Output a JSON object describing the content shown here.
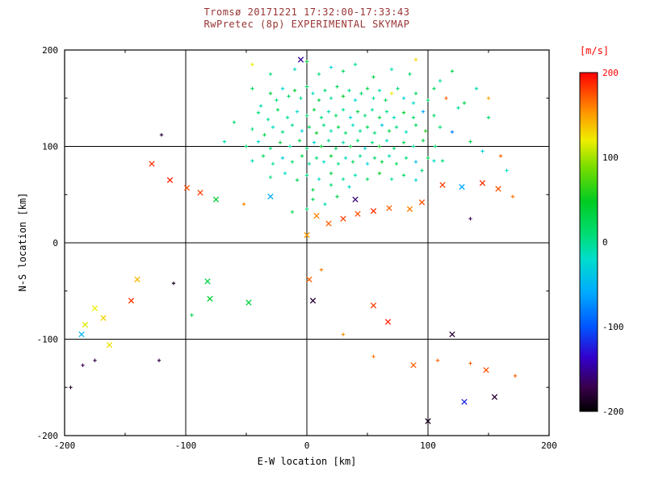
{
  "window": {
    "background": "#ffffff"
  },
  "chart_data": {
    "type": "scatter",
    "title": "Tromsø 20171221 17:32:00-17:33:43",
    "subtitle": "RwPretec (8p) EXPERIMENTAL SKYMAP",
    "title_color": "#993333",
    "xlabel": "E-W location [km]",
    "ylabel": "N-S location [km]",
    "xlim": [
      -200,
      200
    ],
    "ylim": [
      -200,
      200
    ],
    "xticks": [
      -200,
      -100,
      0,
      100,
      200
    ],
    "yticks": [
      -200,
      -100,
      0,
      100,
      200
    ],
    "grid_lines": [
      -100,
      0,
      100
    ],
    "grid": true,
    "legend_position": "none",
    "colorbar": {
      "label": "[m/s]",
      "label_color": "#ff0000",
      "min": -200,
      "max": 200,
      "ticks": [
        200,
        100,
        0,
        -100,
        -200
      ],
      "top_tick_color": "#ff0000",
      "tick_color": "#000000",
      "colormap_stops": [
        [
          0.0,
          "#000000"
        ],
        [
          0.07,
          "#38004a"
        ],
        [
          0.16,
          "#3300cc"
        ],
        [
          0.25,
          "#0055ff"
        ],
        [
          0.35,
          "#00aaff"
        ],
        [
          0.45,
          "#00ddcc"
        ],
        [
          0.52,
          "#00dd77"
        ],
        [
          0.62,
          "#00cc22"
        ],
        [
          0.72,
          "#77dd00"
        ],
        [
          0.8,
          "#eeee00"
        ],
        [
          0.88,
          "#ff9900"
        ],
        [
          1.0,
          "#ff0000"
        ]
      ]
    },
    "points_format": [
      "x_km",
      "y_km",
      "velocity_ms",
      "marker(optional: 'x'=cross, default=plus-dot)"
    ],
    "points": [
      [
        -45,
        160,
        20
      ],
      [
        -38,
        142,
        -10
      ],
      [
        -30,
        155,
        35
      ],
      [
        -25,
        148,
        5
      ],
      [
        -20,
        160,
        -25
      ],
      [
        -15,
        152,
        15
      ],
      [
        -10,
        158,
        40
      ],
      [
        -5,
        150,
        0
      ],
      [
        0,
        162,
        20
      ],
      [
        5,
        155,
        -15
      ],
      [
        10,
        148,
        30
      ],
      [
        15,
        158,
        10
      ],
      [
        20,
        150,
        -5
      ],
      [
        25,
        162,
        25
      ],
      [
        30,
        152,
        45
      ],
      [
        35,
        158,
        5
      ],
      [
        40,
        148,
        -20
      ],
      [
        45,
        155,
        15
      ],
      [
        50,
        160,
        30
      ],
      [
        55,
        150,
        0
      ],
      [
        60,
        158,
        -10
      ],
      [
        65,
        148,
        20
      ],
      [
        70,
        155,
        120
      ],
      [
        75,
        160,
        10
      ],
      [
        80,
        150,
        -30
      ],
      [
        90,
        155,
        25
      ],
      [
        100,
        148,
        15
      ],
      [
        -40,
        135,
        10
      ],
      [
        -32,
        128,
        -5
      ],
      [
        -24,
        138,
        25
      ],
      [
        -16,
        130,
        0
      ],
      [
        -8,
        136,
        -20
      ],
      [
        0,
        132,
        15
      ],
      [
        6,
        138,
        35
      ],
      [
        12,
        130,
        5
      ],
      [
        18,
        136,
        -10
      ],
      [
        24,
        132,
        20
      ],
      [
        30,
        138,
        0
      ],
      [
        36,
        130,
        -25
      ],
      [
        42,
        136,
        30
      ],
      [
        48,
        132,
        10
      ],
      [
        54,
        138,
        -5
      ],
      [
        60,
        130,
        25
      ],
      [
        66,
        136,
        5
      ],
      [
        72,
        130,
        -15
      ],
      [
        80,
        135,
        40
      ],
      [
        88,
        130,
        15
      ],
      [
        96,
        136,
        -60
      ],
      [
        105,
        132,
        20
      ],
      [
        -45,
        118,
        5
      ],
      [
        -35,
        112,
        30
      ],
      [
        -28,
        120,
        -15
      ],
      [
        -20,
        115,
        10
      ],
      [
        -12,
        122,
        0
      ],
      [
        -4,
        116,
        -30
      ],
      [
        2,
        120,
        20
      ],
      [
        8,
        114,
        45
      ],
      [
        14,
        122,
        5
      ],
      [
        20,
        116,
        -10
      ],
      [
        26,
        120,
        30
      ],
      [
        32,
        114,
        15
      ],
      [
        38,
        122,
        -20
      ],
      [
        44,
        116,
        0
      ],
      [
        50,
        120,
        25
      ],
      [
        56,
        114,
        10
      ],
      [
        62,
        122,
        -40
      ],
      [
        68,
        116,
        35
      ],
      [
        74,
        120,
        5
      ],
      [
        82,
        115,
        -15
      ],
      [
        90,
        122,
        20
      ],
      [
        98,
        116,
        60
      ],
      [
        110,
        120,
        10
      ],
      [
        120,
        115,
        -80
      ],
      [
        -50,
        100,
        15
      ],
      [
        -40,
        105,
        -20
      ],
      [
        -30,
        98,
        5
      ],
      [
        -22,
        104,
        35
      ],
      [
        -14,
        100,
        -5
      ],
      [
        -6,
        106,
        25
      ],
      [
        0,
        98,
        10
      ],
      [
        6,
        104,
        -30
      ],
      [
        12,
        100,
        40
      ],
      [
        18,
        106,
        0
      ],
      [
        24,
        98,
        20
      ],
      [
        30,
        104,
        -10
      ],
      [
        36,
        100,
        30
      ],
      [
        42,
        106,
        15
      ],
      [
        48,
        98,
        -25
      ],
      [
        54,
        104,
        5
      ],
      [
        60,
        100,
        50
      ],
      [
        66,
        106,
        -15
      ],
      [
        72,
        98,
        10
      ],
      [
        80,
        104,
        25
      ],
      [
        88,
        100,
        -5
      ],
      [
        96,
        106,
        30
      ],
      [
        106,
        100,
        15
      ],
      [
        -45,
        85,
        -10
      ],
      [
        -36,
        90,
        20
      ],
      [
        -28,
        82,
        0
      ],
      [
        -20,
        88,
        -35
      ],
      [
        -12,
        84,
        15
      ],
      [
        -4,
        90,
        30
      ],
      [
        2,
        82,
        -5
      ],
      [
        8,
        88,
        10
      ],
      [
        14,
        84,
        -20
      ],
      [
        20,
        90,
        40
      ],
      [
        26,
        82,
        5
      ],
      [
        32,
        88,
        -15
      ],
      [
        38,
        84,
        25
      ],
      [
        44,
        90,
        0
      ],
      [
        50,
        82,
        -30
      ],
      [
        56,
        88,
        15
      ],
      [
        62,
        84,
        35
      ],
      [
        68,
        90,
        -10
      ],
      [
        74,
        82,
        20
      ],
      [
        82,
        88,
        5
      ],
      [
        90,
        84,
        -45
      ],
      [
        100,
        88,
        25
      ],
      [
        112,
        85,
        10
      ],
      [
        -30,
        68,
        10
      ],
      [
        -18,
        72,
        -15
      ],
      [
        -8,
        65,
        25
      ],
      [
        0,
        70,
        5
      ],
      [
        10,
        66,
        -20
      ],
      [
        20,
        72,
        30
      ],
      [
        30,
        66,
        0
      ],
      [
        40,
        70,
        -10
      ],
      [
        50,
        66,
        20
      ],
      [
        60,
        72,
        45
      ],
      [
        70,
        66,
        -5
      ],
      [
        80,
        70,
        15
      ],
      [
        90,
        65,
        -25
      ],
      [
        20,
        60,
        10
      ],
      [
        35,
        58,
        -15
      ],
      [
        5,
        55,
        30
      ],
      [
        -30,
        175,
        10
      ],
      [
        -10,
        180,
        -15
      ],
      [
        0,
        188,
        40
      ],
      [
        10,
        175,
        5
      ],
      [
        20,
        182,
        -25
      ],
      [
        30,
        178,
        20
      ],
      [
        40,
        185,
        0
      ],
      [
        55,
        172,
        30
      ],
      [
        70,
        180,
        -10
      ],
      [
        85,
        175,
        15
      ],
      [
        -45,
        185,
        120
      ],
      [
        110,
        168,
        -5
      ],
      [
        120,
        178,
        25
      ],
      [
        130,
        145,
        30
      ],
      [
        140,
        160,
        -10
      ],
      [
        150,
        130,
        15
      ],
      [
        115,
        150,
        170
      ],
      [
        150,
        150,
        150
      ],
      [
        90,
        190,
        130
      ],
      [
        88,
        145,
        -20
      ],
      [
        105,
        160,
        20
      ],
      [
        125,
        140,
        -5
      ],
      [
        135,
        105,
        25
      ],
      [
        145,
        95,
        -30
      ],
      [
        160,
        90,
        170
      ],
      [
        165,
        75,
        -15
      ],
      [
        -60,
        125,
        15
      ],
      [
        -68,
        105,
        -10
      ],
      [
        5,
        45,
        20
      ],
      [
        15,
        40,
        -10
      ],
      [
        25,
        48,
        30
      ],
      [
        0,
        35,
        10
      ],
      [
        -12,
        32,
        25
      ],
      [
        95,
        75,
        10
      ],
      [
        105,
        85,
        -20
      ],
      [
        -120,
        112,
        -180
      ],
      [
        -110,
        -42,
        -190
      ],
      [
        -175,
        -122,
        -175
      ],
      [
        -195,
        -150,
        -185
      ],
      [
        -122,
        -122,
        -175
      ],
      [
        -185,
        -127,
        -170
      ],
      [
        -95,
        -75,
        30
      ],
      [
        30,
        -95,
        155
      ],
      [
        12,
        -28,
        160
      ],
      [
        55,
        -118,
        165
      ],
      [
        108,
        -122,
        170
      ],
      [
        135,
        -125,
        170
      ],
      [
        172,
        -138,
        170
      ],
      [
        170,
        48,
        165
      ],
      [
        135,
        25,
        -170
      ],
      [
        -52,
        40,
        160
      ],
      [
        -128,
        82,
        185,
        "x"
      ],
      [
        -113,
        65,
        190,
        "x"
      ],
      [
        -99,
        57,
        175,
        "x"
      ],
      [
        -88,
        52,
        180,
        "x"
      ],
      [
        8,
        28,
        160,
        "x"
      ],
      [
        18,
        20,
        170,
        "x"
      ],
      [
        30,
        25,
        180,
        "x"
      ],
      [
        42,
        30,
        175,
        "x"
      ],
      [
        55,
        33,
        185,
        "x"
      ],
      [
        68,
        36,
        170,
        "x"
      ],
      [
        85,
        35,
        160,
        "x"
      ],
      [
        95,
        42,
        175,
        "x"
      ],
      [
        40,
        45,
        -160,
        "x"
      ],
      [
        0,
        8,
        150,
        "x"
      ],
      [
        112,
        60,
        180,
        "x"
      ],
      [
        145,
        62,
        185,
        "x"
      ],
      [
        158,
        56,
        175,
        "x"
      ],
      [
        128,
        58,
        -60,
        "x"
      ],
      [
        2,
        -38,
        170,
        "x"
      ],
      [
        5,
        -60,
        -180,
        "x"
      ],
      [
        -48,
        -62,
        35,
        "x"
      ],
      [
        -80,
        -58,
        40,
        "x"
      ],
      [
        -82,
        -40,
        30,
        "x"
      ],
      [
        -140,
        -38,
        140,
        "x"
      ],
      [
        -145,
        -60,
        185,
        "x"
      ],
      [
        -175,
        -68,
        120,
        "x"
      ],
      [
        -168,
        -78,
        130,
        "x"
      ],
      [
        -183,
        -85,
        115,
        "x"
      ],
      [
        -186,
        -95,
        -50,
        "x"
      ],
      [
        -163,
        -106,
        125,
        "x"
      ],
      [
        55,
        -65,
        180,
        "x"
      ],
      [
        67,
        -82,
        190,
        "x"
      ],
      [
        88,
        -127,
        170,
        "x"
      ],
      [
        148,
        -132,
        175,
        "x"
      ],
      [
        120,
        -95,
        -180,
        "x"
      ],
      [
        130,
        -165,
        -120,
        "x"
      ],
      [
        155,
        -160,
        -180,
        "x"
      ],
      [
        100,
        -185,
        -190,
        "x"
      ],
      [
        -5,
        190,
        -150,
        "x"
      ],
      [
        -30,
        48,
        -60,
        "x"
      ],
      [
        -75,
        45,
        40,
        "x"
      ]
    ]
  }
}
